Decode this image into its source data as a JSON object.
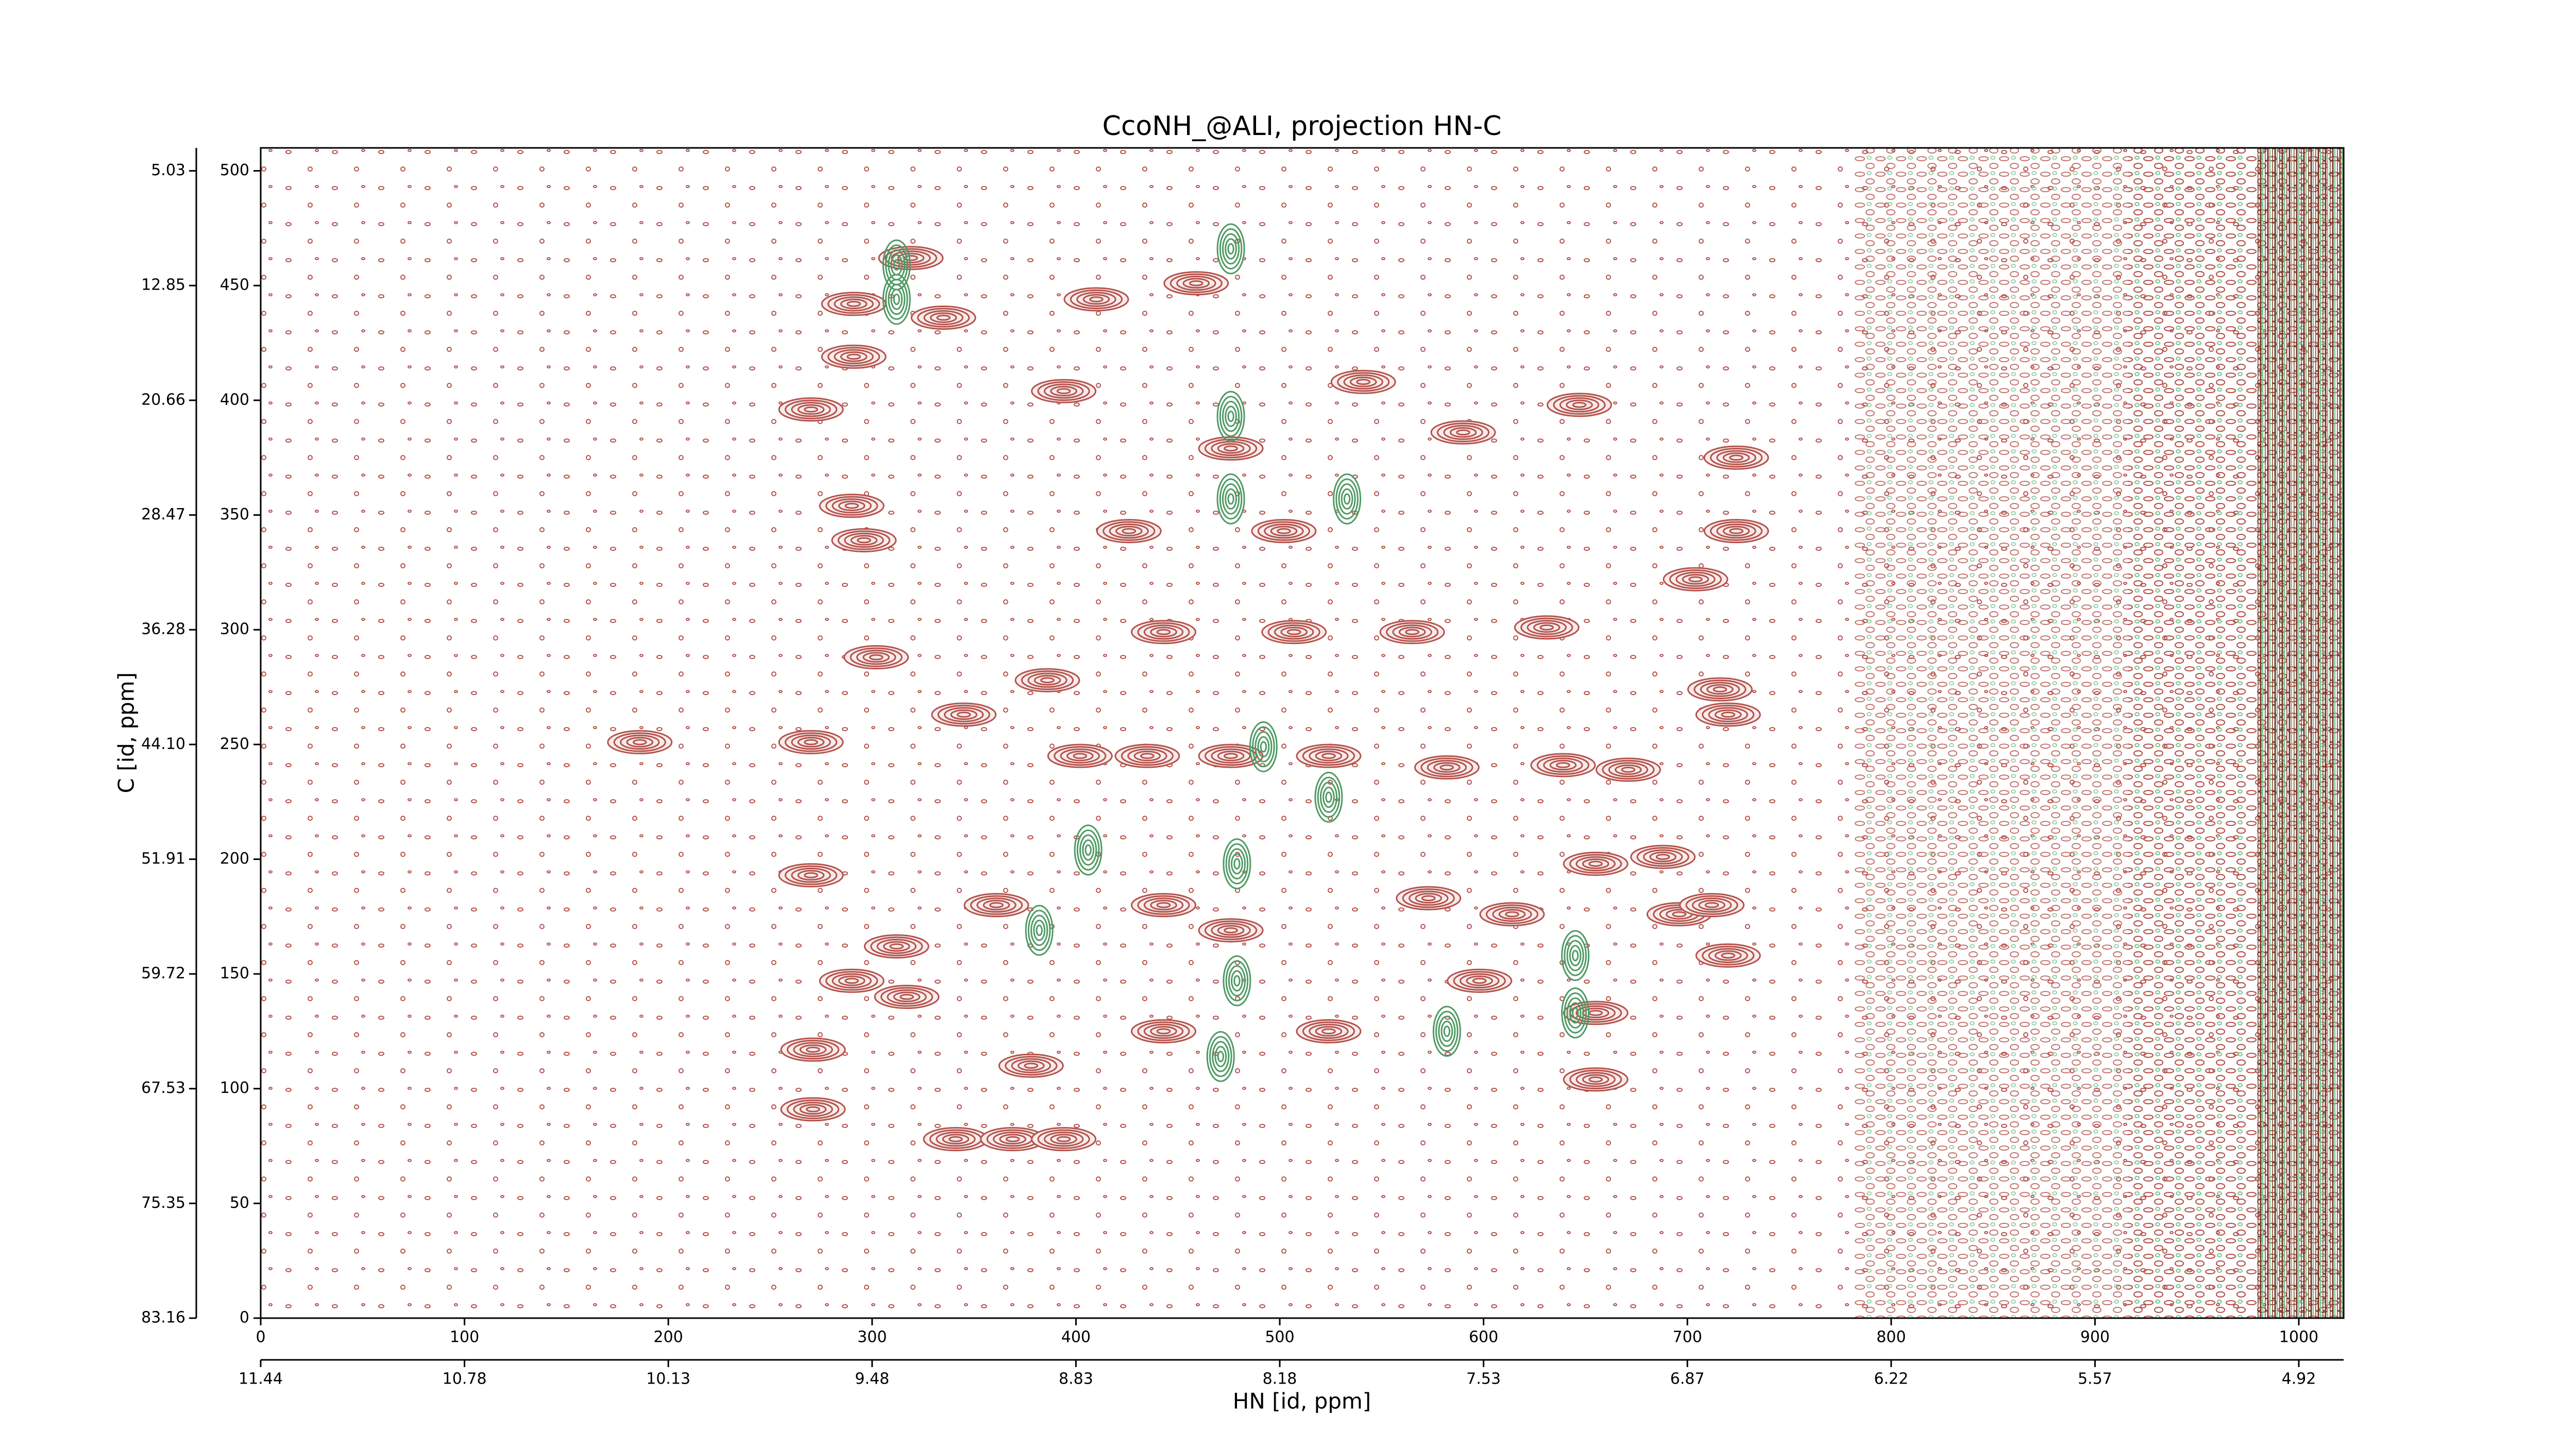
{
  "chart_data": {
    "type": "contour",
    "title": "CcoNH_@ALI, projection HN-C",
    "x_label": "HN [id, ppm]",
    "y_label": "C [id, ppm]",
    "xlim": [
      0,
      1022
    ],
    "ylim": [
      0,
      510
    ],
    "xticks": [
      0,
      100,
      200,
      300,
      400,
      500,
      600,
      700,
      800,
      900,
      1000
    ],
    "yticks": [
      0,
      50,
      100,
      150,
      200,
      250,
      300,
      350,
      400,
      450,
      500
    ],
    "x2ticks": [
      {
        "value": 0,
        "label": "11.44"
      },
      {
        "value": 100,
        "label": "10.78"
      },
      {
        "value": 200,
        "label": "10.13"
      },
      {
        "value": 300,
        "label": "9.48"
      },
      {
        "value": 400,
        "label": "8.83"
      },
      {
        "value": 500,
        "label": "8.18"
      },
      {
        "value": 600,
        "label": "7.53"
      },
      {
        "value": 700,
        "label": "6.87"
      },
      {
        "value": 800,
        "label": "6.22"
      },
      {
        "value": 900,
        "label": "5.57"
      },
      {
        "value": 1000,
        "label": "4.92"
      }
    ],
    "y2ticks": [
      {
        "value": 0,
        "label": "83.16"
      },
      {
        "value": 50,
        "label": "75.35"
      },
      {
        "value": 100,
        "label": "67.53"
      },
      {
        "value": 150,
        "label": "59.72"
      },
      {
        "value": 200,
        "label": "51.91"
      },
      {
        "value": 250,
        "label": "44.10"
      },
      {
        "value": 300,
        "label": "36.28"
      },
      {
        "value": 350,
        "label": "28.47"
      },
      {
        "value": 400,
        "label": "20.66"
      },
      {
        "value": 450,
        "label": "12.85"
      },
      {
        "value": 500,
        "label": "5.03"
      }
    ],
    "series": [
      {
        "color": "#b5524c",
        "x": [
          186,
          270,
          270,
          270,
          291,
          291,
          319,
          335,
          302,
          296,
          290,
          312,
          317,
          290,
          271,
          271,
          341,
          369,
          394,
          345,
          386,
          402,
          435,
          476,
          524,
          582,
          639,
          671,
          443,
          507,
          565,
          631,
          426,
          502,
          476,
          541,
          459,
          410,
          394,
          590,
          647,
          724,
          724,
          704,
          716,
          720,
          720,
          655,
          614,
          573,
          655,
          655,
          598,
          524,
          443,
          378,
          361,
          696,
          688,
          712,
          443,
          476
        ],
        "y": [
          251,
          251,
          193,
          396,
          442,
          419,
          462,
          436,
          288,
          339,
          354,
          162,
          140,
          147,
          117,
          91,
          78,
          78,
          78,
          263,
          278,
          245,
          245,
          245,
          245,
          240,
          241,
          239,
          299,
          299,
          299,
          301,
          343,
          343,
          379,
          408,
          451,
          444,
          404,
          386,
          398,
          375,
          343,
          322,
          274,
          263,
          158,
          198,
          176,
          183,
          104,
          133,
          147,
          125,
          125,
          110,
          180,
          176,
          201,
          180,
          180,
          169
        ]
      },
      {
        "color": "#4f9a64",
        "x": [
          476,
          476,
          492,
          479,
          479,
          476,
          312,
          312,
          406,
          645,
          645,
          471,
          533,
          524,
          382,
          582
        ],
        "y": [
          393,
          357,
          249,
          198,
          147,
          466,
          459,
          444,
          204,
          158,
          133,
          114,
          357,
          227,
          169,
          125
        ]
      }
    ]
  }
}
